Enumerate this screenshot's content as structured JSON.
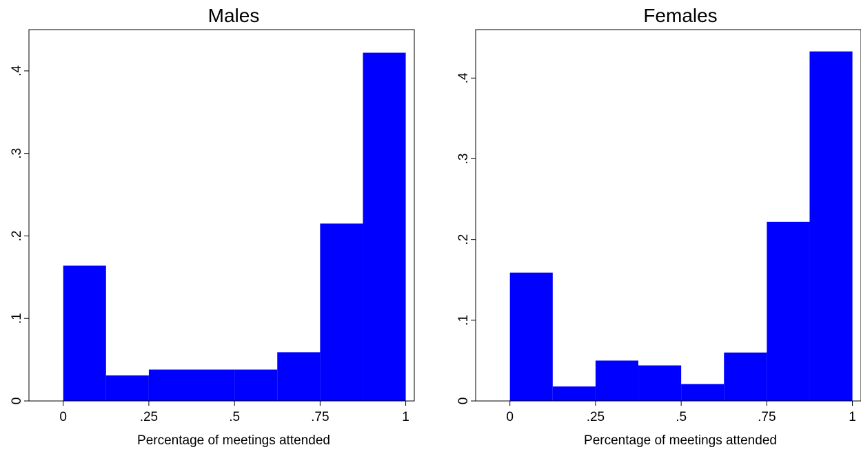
{
  "chart_data": [
    {
      "type": "bar",
      "title": "Males",
      "xlabel": "Percentage of meetings attended",
      "ylabel": "",
      "bin_width": 0.125,
      "bin_starts": [
        0,
        0.125,
        0.25,
        0.375,
        0.5,
        0.625,
        0.75,
        0.875
      ],
      "values": [
        0.164,
        0.031,
        0.038,
        0.038,
        0.038,
        0.059,
        0.215,
        0.422
      ],
      "xlim": [
        -0.1,
        1.025
      ],
      "ylim": [
        0,
        0.45
      ],
      "xticks": [
        0,
        0.25,
        0.5,
        0.75,
        1
      ],
      "xtick_labels": [
        "0",
        ".25",
        ".5",
        ".75",
        "1"
      ],
      "yticks": [
        0,
        0.1,
        0.2,
        0.3,
        0.4
      ],
      "ytick_labels": [
        "0",
        ".1",
        ".2",
        ".3",
        ".4"
      ],
      "bar_color": "#0000ff",
      "grid": false
    },
    {
      "type": "bar",
      "title": "Females",
      "xlabel": "Percentage of meetings attended",
      "ylabel": "",
      "bin_width": 0.125,
      "bin_starts": [
        0,
        0.125,
        0.25,
        0.375,
        0.5,
        0.625,
        0.75,
        0.875
      ],
      "values": [
        0.159,
        0.018,
        0.05,
        0.044,
        0.021,
        0.06,
        0.222,
        0.433
      ],
      "xlim": [
        -0.1,
        1.025
      ],
      "ylim": [
        0,
        0.46
      ],
      "xticks": [
        0,
        0.25,
        0.5,
        0.75,
        1
      ],
      "xtick_labels": [
        "0",
        ".25",
        ".5",
        ".75",
        "1"
      ],
      "yticks": [
        0,
        0.1,
        0.2,
        0.3,
        0.4
      ],
      "ytick_labels": [
        "0",
        ".1",
        ".2",
        ".3",
        ".4"
      ],
      "bar_color": "#0000ff",
      "grid": false
    }
  ]
}
